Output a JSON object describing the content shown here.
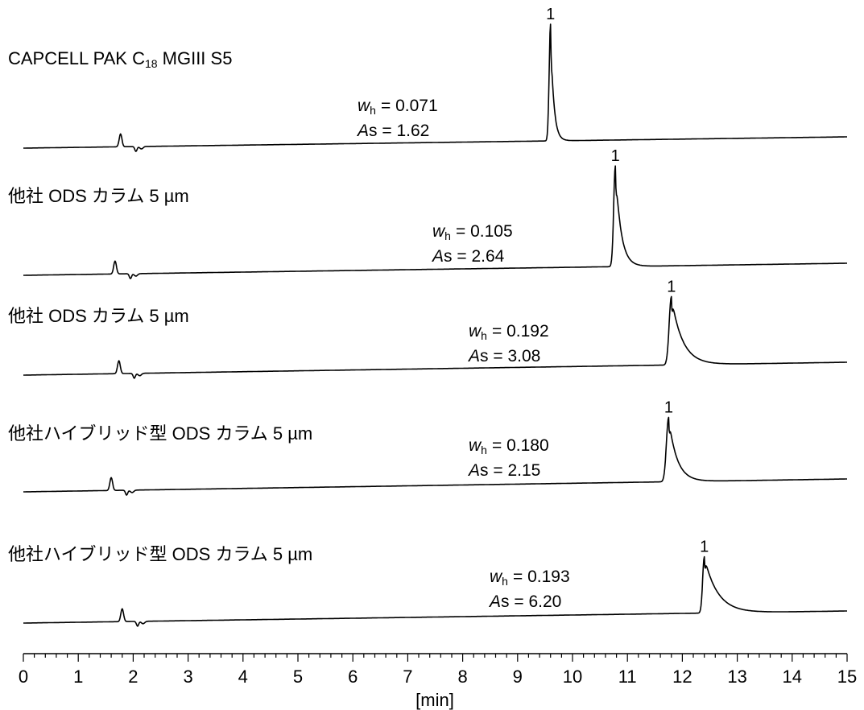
{
  "chart_data": {
    "type": "line",
    "xlabel": "[min]",
    "xlim": [
      0,
      15
    ],
    "x_ticks": [
      "0",
      "1",
      "2",
      "3",
      "4",
      "5",
      "6",
      "7",
      "8",
      "9",
      "10",
      "11",
      "12",
      "13",
      "14",
      "15"
    ],
    "minor_tick_step": 0.2,
    "grid": false,
    "series": [
      {
        "name": "CAPCELL PAK C18 MGIII S5",
        "label_main": "CAPCELL PAK C",
        "label_sub": "18",
        "label_tail": " MGIII S5",
        "peak_label": "1",
        "wh_symbol": "w",
        "wh_subscript": "h",
        "wh_value": "=  0.071",
        "as_symbol": "A",
        "as_value": "s = 1.62",
        "peak_time": 9.6,
        "peak_height": 145,
        "peak_width_left": 0.025,
        "peak_tail": 0.055,
        "baseline_start": 0.0,
        "baseline_end": 14
      },
      {
        "name": "他社 ODS カラム 5 µm",
        "label_main": "他社 ODS カラム 5 µm",
        "peak_label": "1",
        "wh_symbol": "w",
        "wh_subscript": "h",
        "wh_value": "= 0.105",
        "as_symbol": "A",
        "as_value": "s = 2.64",
        "peak_time": 10.78,
        "peak_height": 125,
        "peak_width_left": 0.03,
        "peak_tail": 0.1,
        "baseline_start": 0.0,
        "baseline_end": 15
      },
      {
        "name": "他社 ODS カラム 5 µm",
        "label_main": "他社 ODS カラム 5 µm",
        "peak_label": "1",
        "wh_symbol": "w",
        "wh_subscript": "h",
        "wh_value": "= 0.192",
        "as_symbol": "A",
        "as_value": "s = 3.08",
        "peak_time": 11.8,
        "peak_height": 85,
        "peak_width_left": 0.04,
        "peak_tail": 0.2,
        "baseline_start": 0.0,
        "baseline_end": 16
      },
      {
        "name": "他社ハイブリッド型 ODS カラム 5 µm",
        "label_main": "他社ハイブリッド型 ODS カラム 5 µm",
        "peak_label": "1",
        "wh_symbol": "w",
        "wh_subscript": "h",
        "wh_value": "= 0.180",
        "as_symbol": "A",
        "as_value": "s = 2.15",
        "peak_time": 11.75,
        "peak_height": 80,
        "peak_width_left": 0.04,
        "peak_tail": 0.15,
        "baseline_start": 0.0,
        "baseline_end": 16
      },
      {
        "name": "他社ハイブリッド型 ODS カラム 5 µm",
        "label_main": "他社ハイブリッド型 ODS カラム 5 µm",
        "peak_label": "1",
        "wh_symbol": "w",
        "wh_subscript": "h",
        "wh_value": "= 0.193",
        "as_symbol": "A",
        "as_value": "s = 6.20",
        "peak_time": 12.4,
        "peak_height": 70,
        "peak_width_left": 0.03,
        "peak_tail": 0.24,
        "baseline_start": 0.0,
        "baseline_end": 15
      }
    ]
  }
}
